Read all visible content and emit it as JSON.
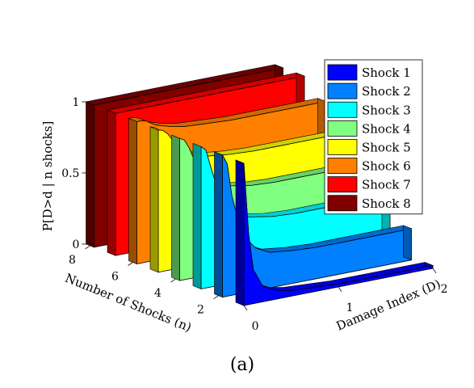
{
  "chart_data": {
    "type": "3d-ribbon",
    "caption": "(a)",
    "zlabel": "P[D>d | n shocks]",
    "ylabel": "Number of Shocks (n)",
    "xlabel": "Damage Index (D)",
    "zticks": [
      "0",
      "0.5",
      "1"
    ],
    "yticks": [
      "2",
      "4",
      "6",
      "8"
    ],
    "xticks": [
      "0",
      "1",
      "2"
    ],
    "xlim": [
      0,
      2
    ],
    "ylim": [
      1,
      8
    ],
    "zlim": [
      0,
      1
    ],
    "legend_placement": "top-right",
    "x": [
      0,
      0.05,
      0.1,
      0.2,
      0.35,
      0.5,
      0.75,
      1.0,
      1.25,
      1.5,
      1.75,
      2.0
    ],
    "series": [
      {
        "name": "Shock 1",
        "n": 1,
        "color": "#0000ff",
        "values": [
          1.0,
          0.5,
          0.24,
          0.11,
          0.06,
          0.04,
          0.03,
          0.02,
          0.02,
          0.02,
          0.02,
          0.02
        ]
      },
      {
        "name": "Shock 2",
        "n": 2,
        "color": "#0080ff",
        "values": [
          1.0,
          0.93,
          0.7,
          0.42,
          0.3,
          0.25,
          0.23,
          0.22,
          0.22,
          0.22,
          0.22,
          0.22
        ]
      },
      {
        "name": "Shock 3",
        "n": 3,
        "color": "#00ffff",
        "values": [
          1.0,
          0.97,
          0.85,
          0.62,
          0.5,
          0.44,
          0.41,
          0.4,
          0.4,
          0.4,
          0.4,
          0.4
        ]
      },
      {
        "name": "Shock 4",
        "n": 4,
        "color": "#80ff80",
        "values": [
          1.0,
          0.98,
          0.92,
          0.75,
          0.65,
          0.6,
          0.57,
          0.56,
          0.56,
          0.56,
          0.56,
          0.56
        ]
      },
      {
        "name": "Shock 5",
        "n": 5,
        "color": "#ffff00",
        "values": [
          1.0,
          0.99,
          0.96,
          0.86,
          0.79,
          0.75,
          0.73,
          0.72,
          0.72,
          0.72,
          0.72,
          0.72
        ]
      },
      {
        "name": "Shock 6",
        "n": 6,
        "color": "#ff8000",
        "values": [
          1.0,
          1.0,
          0.99,
          0.95,
          0.92,
          0.9,
          0.89,
          0.88,
          0.88,
          0.88,
          0.88,
          0.88
        ]
      },
      {
        "name": "Shock 7",
        "n": 7,
        "color": "#ff0000",
        "values": [
          1.0,
          1.0,
          1.0,
          1.0,
          1.0,
          1.0,
          1.0,
          1.0,
          1.0,
          1.0,
          1.0,
          1.0
        ]
      },
      {
        "name": "Shock 8",
        "n": 8,
        "color": "#800000",
        "values": [
          1.0,
          1.0,
          1.0,
          1.0,
          1.0,
          1.0,
          1.0,
          1.0,
          1.0,
          1.0,
          1.0,
          1.0
        ]
      }
    ]
  }
}
